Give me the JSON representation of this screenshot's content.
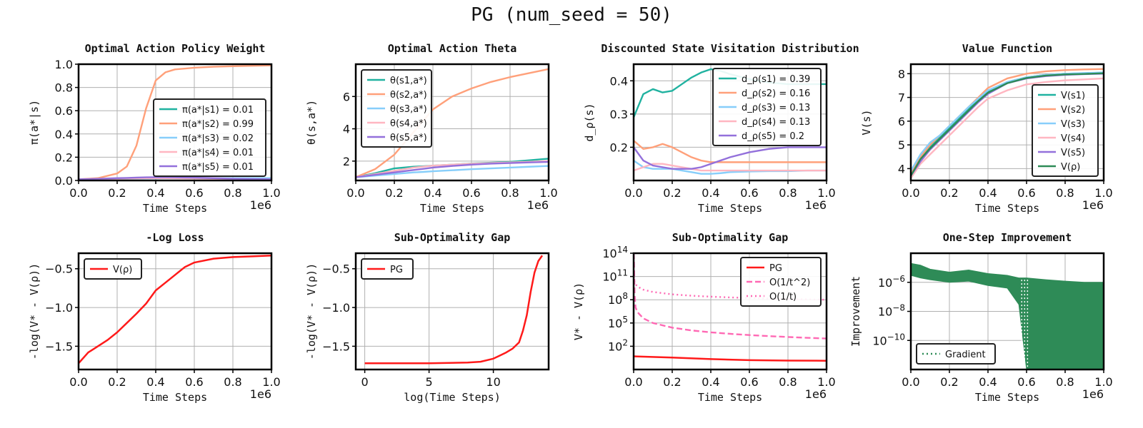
{
  "suptitle": "PG (num_seed = 50)",
  "colors": {
    "teal": "#20b2a0",
    "orange": "#ffa07a",
    "sky": "#87cefa",
    "pink": "#ffb6c1",
    "purple": "#9370db",
    "green": "#2e8b57",
    "red": "#ff1a1a",
    "hotpink": "#ff69b4"
  },
  "chart_data": [
    {
      "type": "line",
      "title": "Optimal Action Policy Weight",
      "xlabel": "Time Steps",
      "ylabel": "π(a*|s)",
      "x_offset_label": "1e6",
      "xlim": [
        0,
        1
      ],
      "ylim": [
        0,
        1
      ],
      "grid": true,
      "legend_position": "lower-right",
      "xticks": [
        "0.0",
        "0.2",
        "0.4",
        "0.6",
        "0.8",
        "1.0"
      ],
      "yticks": [
        "0.0",
        "0.2",
        "0.4",
        "0.6",
        "0.8",
        "1.0"
      ],
      "x": [
        0,
        0.1,
        0.2,
        0.25,
        0.3,
        0.35,
        0.4,
        0.45,
        0.5,
        0.6,
        0.7,
        0.8,
        1.0
      ],
      "series": [
        {
          "name": "π(a*|s1) = 0.01",
          "color": "teal",
          "values": [
            0.01,
            0.012,
            0.015,
            0.016,
            0.018,
            0.02,
            0.022,
            0.022,
            0.023,
            0.022,
            0.02,
            0.016,
            0.01
          ]
        },
        {
          "name": "π(a*|s2) = 0.99",
          "color": "orange",
          "values": [
            0.01,
            0.02,
            0.06,
            0.12,
            0.3,
            0.62,
            0.86,
            0.93,
            0.955,
            0.97,
            0.978,
            0.983,
            0.99
          ]
        },
        {
          "name": "π(a*|s3) = 0.02",
          "color": "sky",
          "values": [
            0.01,
            0.012,
            0.014,
            0.015,
            0.016,
            0.017,
            0.018,
            0.019,
            0.019,
            0.02,
            0.02,
            0.02,
            0.02
          ]
        },
        {
          "name": "π(a*|s4) = 0.01",
          "color": "pink",
          "values": [
            0.01,
            0.012,
            0.015,
            0.017,
            0.018,
            0.02,
            0.02,
            0.02,
            0.019,
            0.017,
            0.015,
            0.012,
            0.01
          ]
        },
        {
          "name": "π(a*|s5) = 0.01",
          "color": "purple",
          "values": [
            0.01,
            0.014,
            0.02,
            0.022,
            0.025,
            0.027,
            0.028,
            0.028,
            0.027,
            0.024,
            0.02,
            0.015,
            0.01
          ]
        }
      ]
    },
    {
      "type": "line",
      "title": "Optimal Action Theta",
      "xlabel": "Time Steps",
      "ylabel": "θ(s,a*)",
      "x_offset_label": "1e6",
      "xlim": [
        0,
        1
      ],
      "ylim": [
        0.8,
        8
      ],
      "grid": true,
      "legend_position": "upper-left",
      "xticks": [
        "0.0",
        "0.2",
        "0.4",
        "0.6",
        "0.8",
        "1.0"
      ],
      "yticks": [
        "2",
        "4",
        "6"
      ],
      "x": [
        0,
        0.1,
        0.2,
        0.3,
        0.35,
        0.4,
        0.5,
        0.6,
        0.7,
        0.8,
        0.9,
        1.0
      ],
      "series": [
        {
          "name": "θ(s1,a*)",
          "color": "teal",
          "values": [
            1.0,
            1.25,
            1.55,
            1.65,
            1.68,
            1.72,
            1.78,
            1.85,
            1.9,
            1.95,
            2.05,
            2.15
          ]
        },
        {
          "name": "θ(s2,a*)",
          "color": "orange",
          "values": [
            1.0,
            1.5,
            2.4,
            3.8,
            4.5,
            5.2,
            6.0,
            6.5,
            6.9,
            7.2,
            7.45,
            7.7
          ]
        },
        {
          "name": "θ(s3,a*)",
          "color": "sky",
          "values": [
            1.0,
            1.1,
            1.2,
            1.3,
            1.33,
            1.37,
            1.43,
            1.5,
            1.55,
            1.6,
            1.65,
            1.7
          ]
        },
        {
          "name": "θ(s4,a*)",
          "color": "pink",
          "values": [
            1.0,
            1.2,
            1.4,
            1.6,
            1.66,
            1.72,
            1.78,
            1.84,
            1.88,
            1.92,
            1.96,
            2.0
          ]
        },
        {
          "name": "θ(s5,a*)",
          "color": "purple",
          "values": [
            1.0,
            1.15,
            1.3,
            1.45,
            1.52,
            1.6,
            1.7,
            1.78,
            1.84,
            1.88,
            1.92,
            1.95
          ]
        }
      ]
    },
    {
      "type": "line",
      "title": "Discounted State Visitation Distribution",
      "xlabel": "Time Steps",
      "ylabel": "d_ρ(s)",
      "x_offset_label": "1e6",
      "xlim": [
        0,
        1
      ],
      "ylim": [
        0.1,
        0.45
      ],
      "grid": true,
      "legend_position": "upper-right",
      "xticks": [
        "0.0",
        "0.2",
        "0.4",
        "0.6",
        "0.8",
        "1.0"
      ],
      "yticks": [
        "0.2",
        "0.3",
        "0.4"
      ],
      "x": [
        0,
        0.05,
        0.1,
        0.15,
        0.2,
        0.25,
        0.3,
        0.35,
        0.4,
        0.45,
        0.5,
        0.6,
        0.7,
        0.8,
        0.9,
        1.0
      ],
      "series": [
        {
          "name": "d_ρ(s1) = 0.39",
          "color": "teal",
          "values": [
            0.29,
            0.36,
            0.375,
            0.365,
            0.37,
            0.39,
            0.41,
            0.425,
            0.435,
            0.43,
            0.42,
            0.405,
            0.395,
            0.39,
            0.39,
            0.39
          ]
        },
        {
          "name": "d_ρ(s2) = 0.16",
          "color": "orange",
          "values": [
            0.22,
            0.195,
            0.2,
            0.21,
            0.2,
            0.185,
            0.17,
            0.16,
            0.155,
            0.155,
            0.155,
            0.155,
            0.155,
            0.155,
            0.155,
            0.155
          ]
        },
        {
          "name": "d_ρ(s3) = 0.13",
          "color": "sky",
          "values": [
            0.16,
            0.14,
            0.135,
            0.135,
            0.135,
            0.13,
            0.125,
            0.12,
            0.12,
            0.122,
            0.125,
            0.127,
            0.128,
            0.128,
            0.13,
            0.13
          ]
        },
        {
          "name": "d_ρ(s4) = 0.13",
          "color": "pink",
          "values": [
            0.13,
            0.14,
            0.15,
            0.15,
            0.145,
            0.14,
            0.135,
            0.13,
            0.13,
            0.13,
            0.13,
            0.13,
            0.13,
            0.13,
            0.13,
            0.13
          ]
        },
        {
          "name": "d_ρ(s5) = 0.2",
          "color": "purple",
          "values": [
            0.2,
            0.16,
            0.145,
            0.14,
            0.135,
            0.135,
            0.135,
            0.14,
            0.15,
            0.16,
            0.17,
            0.185,
            0.195,
            0.2,
            0.2,
            0.2
          ]
        }
      ]
    },
    {
      "type": "line",
      "title": "Value Function",
      "xlabel": "Time Steps",
      "ylabel": "V(s)",
      "x_offset_label": "1e6",
      "xlim": [
        0,
        1
      ],
      "ylim": [
        3.5,
        8.4
      ],
      "grid": true,
      "legend_position": "lower-right",
      "xticks": [
        "0.0",
        "0.2",
        "0.4",
        "0.6",
        "0.8",
        "1.0"
      ],
      "yticks": [
        "4",
        "5",
        "6",
        "7",
        "8"
      ],
      "x": [
        0,
        0.05,
        0.1,
        0.15,
        0.2,
        0.25,
        0.3,
        0.35,
        0.4,
        0.5,
        0.6,
        0.7,
        0.8,
        0.9,
        1.0
      ],
      "series": [
        {
          "name": "V(s1)",
          "color": "teal",
          "values": [
            3.7,
            4.4,
            4.9,
            5.3,
            5.7,
            6.1,
            6.5,
            6.9,
            7.25,
            7.65,
            7.85,
            7.95,
            8.0,
            8.02,
            8.05
          ]
        },
        {
          "name": "V(s2)",
          "color": "orange",
          "values": [
            3.8,
            4.5,
            5.0,
            5.4,
            5.8,
            6.2,
            6.6,
            7.0,
            7.4,
            7.8,
            8.0,
            8.1,
            8.15,
            8.18,
            8.2
          ]
        },
        {
          "name": "V(s3)",
          "color": "sky",
          "values": [
            3.9,
            4.6,
            5.1,
            5.4,
            5.8,
            6.2,
            6.6,
            6.95,
            7.3,
            7.65,
            7.85,
            7.95,
            8.0,
            8.03,
            8.05
          ]
        },
        {
          "name": "V(s4)",
          "color": "pink",
          "values": [
            3.6,
            4.2,
            4.6,
            5.0,
            5.4,
            5.8,
            6.2,
            6.6,
            6.95,
            7.3,
            7.55,
            7.65,
            7.72,
            7.76,
            7.8
          ]
        },
        {
          "name": "V(s5)",
          "color": "purple",
          "values": [
            3.7,
            4.3,
            4.8,
            5.2,
            5.6,
            6.0,
            6.4,
            6.8,
            7.15,
            7.6,
            7.8,
            7.9,
            7.95,
            7.98,
            8.0
          ]
        },
        {
          "name": "V(ρ)",
          "color": "green",
          "values": [
            3.7,
            4.4,
            4.85,
            5.25,
            5.65,
            6.05,
            6.45,
            6.85,
            7.2,
            7.6,
            7.82,
            7.92,
            7.97,
            7.99,
            8.02
          ]
        }
      ]
    },
    {
      "type": "line",
      "title": "-Log Loss",
      "xlabel": "Time Steps",
      "ylabel": "-log(V* - V(ρ))",
      "x_offset_label": "1e6",
      "xlim": [
        0,
        1
      ],
      "ylim": [
        -1.8,
        -0.3
      ],
      "grid": true,
      "legend_position": "upper-left",
      "xticks": [
        "0.0",
        "0.2",
        "0.4",
        "0.6",
        "0.8",
        "1.0"
      ],
      "yticks": [
        "-1.5",
        "-1.0",
        "-0.5"
      ],
      "x": [
        0,
        0.05,
        0.1,
        0.15,
        0.2,
        0.25,
        0.3,
        0.35,
        0.4,
        0.45,
        0.5,
        0.55,
        0.6,
        0.7,
        0.8,
        0.9,
        1.0
      ],
      "series": [
        {
          "name": "V(ρ)",
          "color": "red",
          "values": [
            -1.72,
            -1.58,
            -1.5,
            -1.42,
            -1.32,
            -1.2,
            -1.08,
            -0.95,
            -0.78,
            -0.68,
            -0.58,
            -0.48,
            -0.42,
            -0.37,
            -0.35,
            -0.34,
            -0.33
          ]
        }
      ]
    },
    {
      "type": "line",
      "title": "Sub-Optimality Gap",
      "xlabel": "log(Time Steps)",
      "ylabel": "-log(V* - V(ρ))",
      "xlim": [
        -0.7,
        14.3
      ],
      "ylim": [
        -1.8,
        -0.3
      ],
      "grid": true,
      "legend_position": "upper-left",
      "xticks": [
        "0",
        "5",
        "10"
      ],
      "yticks": [
        "-1.5",
        "-1.0",
        "-0.5"
      ],
      "x": [
        0,
        5,
        8,
        9,
        10,
        10.5,
        11,
        11.5,
        12,
        12.3,
        12.6,
        12.9,
        13.2,
        13.5,
        13.8
      ],
      "series": [
        {
          "name": "PG",
          "color": "red",
          "values": [
            -1.72,
            -1.72,
            -1.71,
            -1.7,
            -1.66,
            -1.62,
            -1.58,
            -1.53,
            -1.45,
            -1.3,
            -1.1,
            -0.8,
            -0.55,
            -0.4,
            -0.33
          ]
        }
      ]
    },
    {
      "type": "line",
      "title": "Sub-Optimality Gap",
      "xlabel": "Time Steps",
      "ylabel": "V* - V(ρ)",
      "x_offset_label": "1e6",
      "y_scale": "log",
      "xlim": [
        0,
        1
      ],
      "ylim": [
        0.1,
        100000000000000.0
      ],
      "grid": true,
      "legend_position": "upper-right",
      "xticks": [
        "0.0",
        "0.2",
        "0.4",
        "0.6",
        "0.8",
        "1.0"
      ],
      "yticks": [
        "10^2",
        "10^5",
        "10^8",
        "10^11",
        "10^14"
      ],
      "series": [
        {
          "name": "PG",
          "color": "red",
          "style": "solid",
          "x": [
            0,
            0.2,
            0.4,
            0.6,
            0.8,
            1.0
          ],
          "values": [
            5,
            3.5,
            2.2,
            1.6,
            1.4,
            1.35
          ]
        },
        {
          "name": "O(1/t^2)",
          "color": "hotpink",
          "style": "dashed",
          "x": [
            0.001,
            0.005,
            0.01,
            0.02,
            0.05,
            0.1,
            0.2,
            0.3,
            0.4,
            0.5,
            0.6,
            0.7,
            0.8,
            0.9,
            1.0
          ],
          "values": [
            100000000000000.0,
            400000000.0,
            10000000.0,
            2500000.0,
            400000.0,
            100000.0,
            25000.0,
            11000.0,
            6250,
            4000,
            2780,
            2040,
            1560,
            1230,
            1000
          ]
        },
        {
          "name": "O(1/t)",
          "color": "hotpink",
          "style": "dotted",
          "x": [
            0.001,
            0.005,
            0.01,
            0.02,
            0.05,
            0.1,
            0.2,
            0.3,
            0.4,
            0.5,
            0.6,
            0.7,
            0.8,
            0.9,
            1.0
          ],
          "values": [
            100000000000.0,
            20000000000.0,
            10000000000.0,
            5000000000.0,
            2000000000.0,
            1000000000.0,
            500000000.0,
            330000000.0,
            250000000.0,
            200000000.0,
            170000000.0,
            140000000.0,
            125000000.0,
            110000000.0,
            100000000.0
          ]
        }
      ]
    },
    {
      "type": "line",
      "title": "One-Step Improvement",
      "xlabel": "Time Steps",
      "ylabel": "Improvement",
      "x_offset_label": "1e6",
      "y_scale": "log",
      "xlim": [
        0,
        1
      ],
      "ylim": [
        1e-12,
        0.0001
      ],
      "grid": true,
      "legend_position": "lower-left",
      "xticks": [
        "0.0",
        "0.2",
        "0.4",
        "0.6",
        "0.8",
        "1.0"
      ],
      "yticks": [
        "10^-10",
        "10^-8",
        "10^-6"
      ],
      "series": [
        {
          "name": "Gradient",
          "color": "green",
          "style": "dotted",
          "x": [
            0,
            0.05,
            0.1,
            0.2,
            0.3,
            0.4,
            0.5,
            0.56,
            0.6,
            0.7,
            0.8,
            0.9,
            1.0
          ],
          "upper": [
            2e-05,
            1.5e-05,
            8e-06,
            5e-06,
            7e-06,
            4e-06,
            3e-06,
            2e-06,
            2e-06,
            1.5e-06,
            1.2e-06,
            1e-06,
            1e-06
          ],
          "lower": [
            3e-06,
            2e-06,
            1.5e-06,
            1e-06,
            1.2e-06,
            6e-07,
            4e-07,
            3e-08,
            1e-12,
            1e-12,
            1e-12,
            1e-12,
            1e-12
          ]
        }
      ]
    }
  ]
}
